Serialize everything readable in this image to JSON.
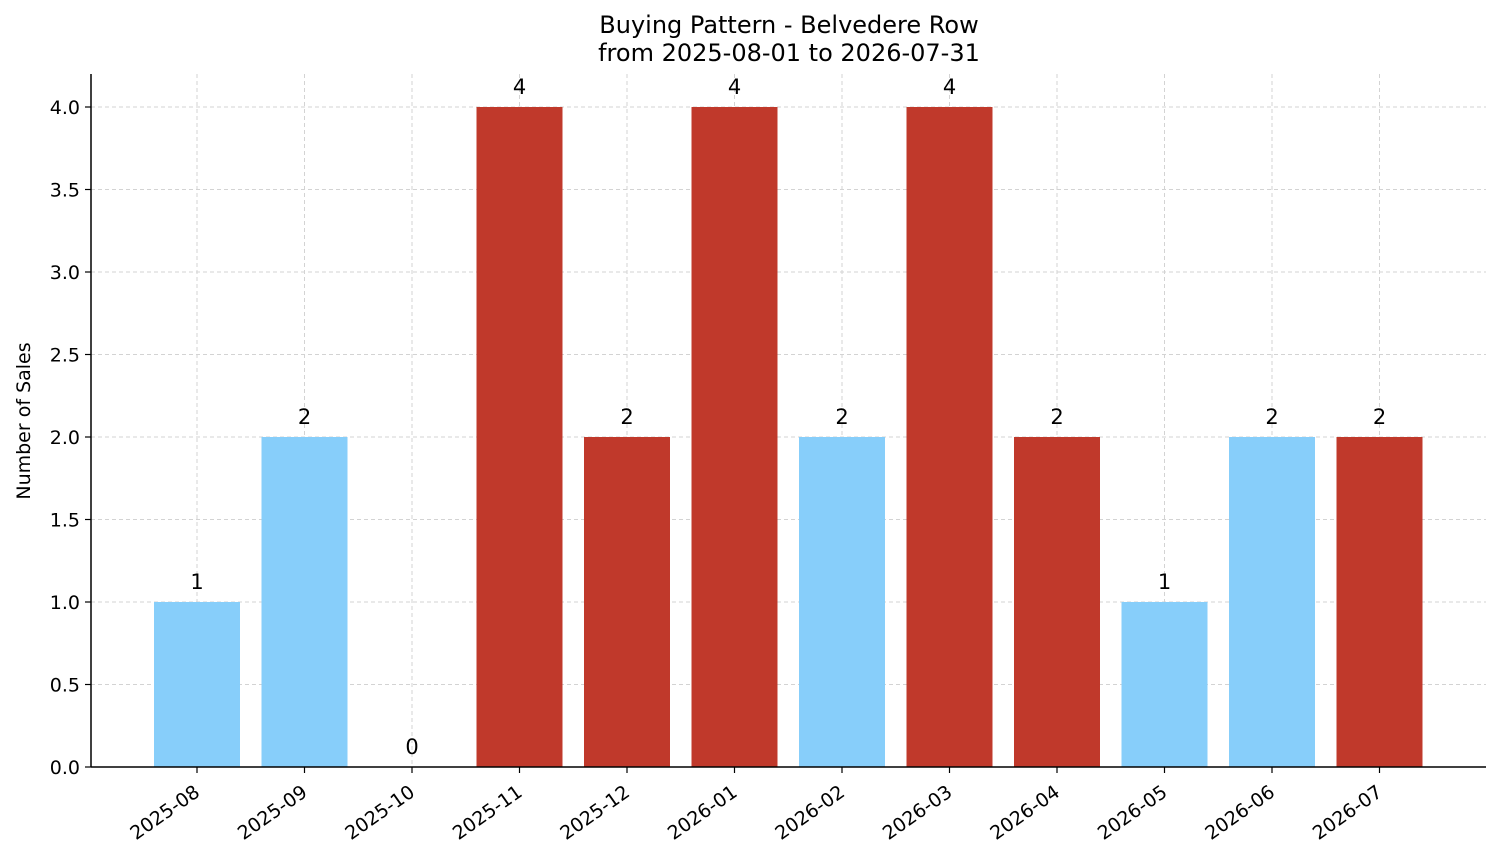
{
  "chart_data": {
    "type": "bar",
    "title": "Buying Pattern - Belvedere Row",
    "subtitle": "from 2025-08-01 to 2026-07-31",
    "xlabel": "",
    "ylabel": "Number of Sales",
    "categories": [
      "2025-08",
      "2025-09",
      "2025-10",
      "2025-11",
      "2025-12",
      "2026-01",
      "2026-02",
      "2026-03",
      "2026-04",
      "2026-05",
      "2026-06",
      "2026-07"
    ],
    "values": [
      1,
      2,
      0,
      4,
      2,
      4,
      2,
      4,
      2,
      1,
      2,
      2
    ],
    "bar_colors": [
      "#87CEFA",
      "#87CEFA",
      "#87CEFA",
      "#C0392B",
      "#C0392B",
      "#C0392B",
      "#87CEFA",
      "#C0392B",
      "#C0392B",
      "#87CEFA",
      "#87CEFA",
      "#C0392B"
    ],
    "ylim": [
      0,
      4.2
    ],
    "yticks": [
      "0.0",
      "0.5",
      "1.0",
      "1.5",
      "2.0",
      "2.5",
      "3.0",
      "3.5",
      "4.0"
    ],
    "grid": true,
    "legend": "none"
  }
}
